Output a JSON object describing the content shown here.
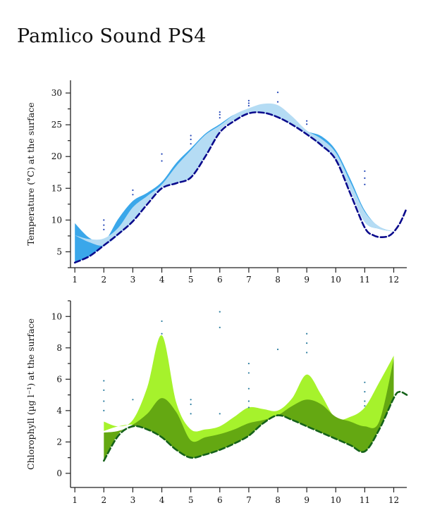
{
  "title": "Pamlico Sound PS4",
  "chart_data": [
    {
      "type": "area",
      "ylabel": "Temperature (°C) at the surface",
      "xlim": [
        0.85,
        12.45
      ],
      "ylim": [
        2.5,
        32
      ],
      "xticks": [
        1,
        2,
        3,
        4,
        5,
        6,
        7,
        8,
        9,
        10,
        11,
        12
      ],
      "yticks": [
        5,
        10,
        15,
        20,
        25,
        30
      ],
      "colors": {
        "band_dark": "#3aa7ea",
        "band_light": "#b5dcf4",
        "line": "#0a0a8c",
        "points": "#2346b8"
      },
      "series": [
        {
          "kind": "band_dark",
          "x": [
            1,
            1.5,
            2,
            2.5,
            3,
            3.5,
            4,
            4.5,
            5,
            5.5,
            6,
            6.5,
            7,
            7.5,
            8,
            8.5,
            9,
            9.5,
            10,
            10.5,
            11,
            11.5,
            12
          ],
          "upper": [
            9.5,
            7.2,
            6.6,
            10.2,
            13.0,
            14.3,
            16.0,
            19.0,
            21.3,
            23.6,
            25.1,
            26.6,
            27.2,
            27.9,
            27.7,
            25.6,
            24.0,
            23.2,
            21.0,
            16.5,
            11.5,
            8.9,
            8.2
          ],
          "lower": [
            3.3,
            4.3,
            6.0,
            7.8,
            9.8,
            12.8,
            15.2,
            15.8,
            16.8,
            20.2,
            24.1,
            25.8,
            26.9,
            26.8,
            26.1,
            25.0,
            23.6,
            21.6,
            19.5,
            14.8,
            9.7,
            8.6,
            8.2
          ]
        },
        {
          "kind": "band_light",
          "x": [
            1,
            1.5,
            2,
            2.5,
            3,
            3.5,
            4,
            4.5,
            5,
            5.5,
            6,
            6.5,
            7,
            7.5,
            8,
            8.5,
            9,
            9.5,
            10,
            10.5,
            11,
            11.5,
            12
          ],
          "upper": [
            7.6,
            7.0,
            7.1,
            8.8,
            12.0,
            13.8,
            15.6,
            18.5,
            21.0,
            23.4,
            24.9,
            26.6,
            27.6,
            28.3,
            28.1,
            26.3,
            24.1,
            22.8,
            20.6,
            16.0,
            11.3,
            9.0,
            8.2
          ],
          "lower": [
            7.6,
            6.5,
            6.0,
            7.6,
            9.8,
            12.8,
            15.2,
            15.8,
            16.8,
            20.2,
            24.1,
            25.8,
            26.9,
            26.8,
            26.1,
            25.0,
            23.6,
            21.6,
            19.5,
            14.8,
            9.7,
            8.6,
            8.2
          ]
        },
        {
          "kind": "dashed_line",
          "x": [
            1,
            1.5,
            2,
            2.5,
            3,
            3.5,
            4,
            4.5,
            5,
            5.5,
            6,
            6.5,
            7,
            7.5,
            8,
            8.5,
            9,
            9.5,
            10,
            10.5,
            11,
            11.3,
            11.6,
            11.9,
            12.2,
            12.45
          ],
          "y": [
            3.3,
            4.3,
            6.0,
            7.8,
            9.8,
            12.5,
            15.0,
            15.8,
            16.7,
            20.0,
            23.8,
            25.6,
            26.8,
            26.9,
            26.2,
            25.0,
            23.5,
            21.8,
            19.5,
            14.2,
            8.8,
            7.6,
            7.3,
            7.7,
            9.4,
            11.9
          ]
        },
        {
          "kind": "points",
          "x": [
            2,
            2,
            2,
            3,
            3,
            4,
            4,
            5,
            5,
            5,
            6,
            6,
            6,
            7,
            7,
            7,
            8,
            8,
            9,
            9,
            11,
            11,
            11
          ],
          "y": [
            10.0,
            9.2,
            8.5,
            14.7,
            14.0,
            20.4,
            19.3,
            23.3,
            22.7,
            22.0,
            27.0,
            26.6,
            26.1,
            28.8,
            28.4,
            28.0,
            30.1,
            28.6,
            25.6,
            25.1,
            17.7,
            16.6,
            15.6
          ]
        }
      ]
    },
    {
      "type": "area",
      "ylabel": "Chlorophyll (µg l⁻¹) at the surface",
      "xlim": [
        0.85,
        12.45
      ],
      "ylim": [
        -0.9,
        11
      ],
      "xticks": [
        1,
        2,
        3,
        4,
        5,
        6,
        7,
        8,
        9,
        10,
        11,
        12
      ],
      "yticks": [
        0,
        2,
        4,
        6,
        8,
        10
      ],
      "colors": {
        "band_light": "#a6f22c",
        "band_dark": "#64a812",
        "line": "#15621a",
        "points": "#2d7ea0"
      },
      "series": [
        {
          "kind": "band_light",
          "x": [
            2,
            2.5,
            3,
            3.5,
            4,
            4.5,
            5,
            5.5,
            6,
            6.5,
            7,
            7.5,
            8,
            8.5,
            9,
            9.5,
            10,
            10.5,
            11,
            11.5,
            12
          ],
          "upper": [
            3.3,
            3.0,
            3.4,
            5.5,
            8.8,
            4.5,
            2.8,
            2.8,
            3.0,
            3.6,
            4.2,
            4.1,
            4.0,
            4.8,
            6.3,
            5.0,
            3.5,
            3.6,
            4.2,
            5.8,
            7.5
          ],
          "lower": [
            2.7,
            3.0,
            3.1,
            2.8,
            2.3,
            1.5,
            1.0,
            1.2,
            1.5,
            1.9,
            2.4,
            3.2,
            3.7,
            3.4,
            3.0,
            2.6,
            2.2,
            1.8,
            1.4,
            2.8,
            4.8
          ]
        },
        {
          "kind": "band_dark",
          "x": [
            2,
            2.5,
            3,
            3.5,
            4,
            4.5,
            5,
            5.5,
            6,
            6.5,
            7,
            7.5,
            8,
            8.5,
            9,
            9.5,
            10,
            10.5,
            11,
            11.5,
            12
          ],
          "upper": [
            2.6,
            2.7,
            3.1,
            3.8,
            4.8,
            3.9,
            2.1,
            2.3,
            2.5,
            2.8,
            3.2,
            3.4,
            3.7,
            4.3,
            4.7,
            4.4,
            3.6,
            3.3,
            3.0,
            3.3,
            7.3
          ],
          "lower": [
            0.8,
            2.5,
            3.0,
            2.8,
            2.3,
            1.5,
            1.0,
            1.2,
            1.5,
            1.9,
            2.4,
            3.2,
            3.7,
            3.4,
            3.0,
            2.6,
            2.2,
            1.8,
            1.4,
            2.8,
            4.8
          ]
        },
        {
          "kind": "dashed_line",
          "x": [
            2,
            2.5,
            3,
            3.5,
            4,
            4.5,
            5,
            5.5,
            6,
            6.5,
            7,
            7.5,
            8,
            8.5,
            9,
            9.5,
            10,
            10.5,
            11,
            11.5,
            12,
            12.2,
            12.45
          ],
          "y": [
            0.8,
            2.4,
            3.0,
            2.8,
            2.3,
            1.5,
            1.0,
            1.2,
            1.5,
            1.9,
            2.4,
            3.2,
            3.7,
            3.4,
            3.0,
            2.6,
            2.2,
            1.8,
            1.4,
            2.8,
            4.8,
            5.2,
            5.0
          ]
        },
        {
          "kind": "points",
          "x": [
            2,
            2,
            2,
            2,
            3,
            4,
            4,
            5,
            5,
            5,
            6,
            6,
            6,
            7,
            7,
            7,
            7,
            7,
            8,
            9,
            9,
            9,
            11,
            11,
            11,
            11
          ],
          "y": [
            5.9,
            5.3,
            4.6,
            4.0,
            4.7,
            9.7,
            8.9,
            4.7,
            4.4,
            3.8,
            10.3,
            9.3,
            3.8,
            7.0,
            6.4,
            5.4,
            4.6,
            4.2,
            7.9,
            8.9,
            8.3,
            7.7,
            5.8,
            5.2,
            4.6,
            4.3
          ]
        }
      ]
    }
  ]
}
